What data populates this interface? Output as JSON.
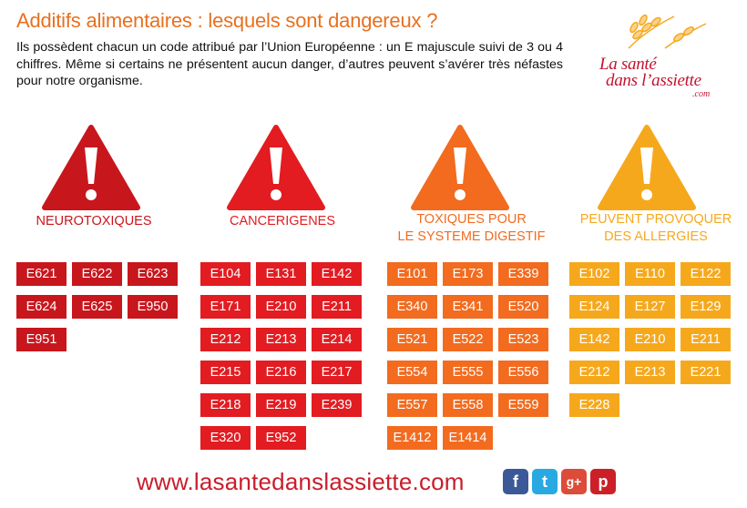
{
  "title": "Additifs alimentaires : lesquels sont dangereux ?",
  "intro": "Ils possèdent chacun un code attribué par l’Union Européenne : un E majuscule suivi de 3 ou 4 chiffres. Même si certains ne présentent aucun danger, d’autres peuvent s’avérer très néfastes pour notre organisme.",
  "logo": {
    "line1": "La santé",
    "line2": "dans l’assiette",
    "domain": ".com"
  },
  "colors": {
    "title": "#e8701f",
    "neuro": "#c8161d",
    "cancer": "#e21c21",
    "digest": "#f26b1f",
    "allergy": "#f6a81c"
  },
  "categories": [
    {
      "label_1": "NEUROTOXIQUES",
      "label_2": "",
      "codes": [
        "E621",
        "E622",
        "E623",
        "E624",
        "E625",
        "E950",
        "E951"
      ]
    },
    {
      "label_1": "CANCERIGENES",
      "label_2": "",
      "codes": [
        "E104",
        "E131",
        "E142",
        "E171",
        "E210",
        "E211",
        "E212",
        "E213",
        "E214",
        "E215",
        "E216",
        "E217",
        "E218",
        "E219",
        "E239",
        "E320",
        "E952"
      ]
    },
    {
      "label_1": "TOXIQUES POUR",
      "label_2": "LE SYSTEME DIGESTIF",
      "codes": [
        "E101",
        "E173",
        "E339",
        "E340",
        "E341",
        "E520",
        "E521",
        "E522",
        "E523",
        "E554",
        "E555",
        "E556",
        "E557",
        "E558",
        "E559",
        "E1412",
        "E1414"
      ]
    },
    {
      "label_1": "PEUVENT PROVOQUER",
      "label_2": "DES ALLERGIES",
      "codes": [
        "E102",
        "E110",
        "E122",
        "E124",
        "E127",
        "E129",
        "E142",
        "E210",
        "E211",
        "E212",
        "E213",
        "E221",
        "E228"
      ]
    }
  ],
  "footer": {
    "url": "www.lasantedanslassiette.com",
    "social_icons": [
      "facebook-icon",
      "twitter-icon",
      "google-plus-icon",
      "pinterest-icon"
    ],
    "social_glyphs": [
      "f",
      "t",
      "g+",
      "p"
    ]
  }
}
